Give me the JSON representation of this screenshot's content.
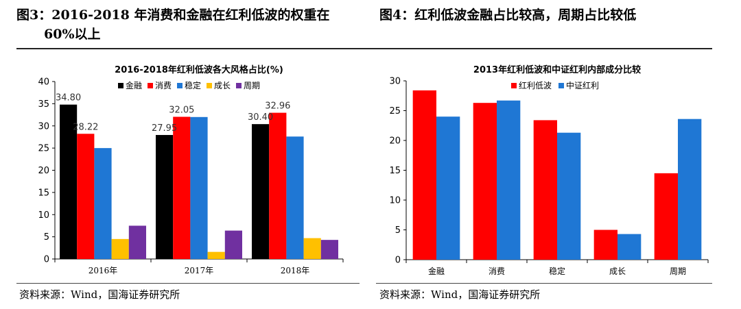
{
  "header": {
    "fig3_title_line1": "图3：2016-2018 年消费和金融在红利低波的权重在",
    "fig3_title_line2": "60%以上",
    "fig4_title": "图4：红利低波金融占比较高，周期占比较低"
  },
  "footer": {
    "source_left": "资料来源：Wind，国海证券研究所",
    "source_right": "资料来源：Wind，国海证券研究所"
  },
  "colors": {
    "black": "#000000",
    "red": "#ff0000",
    "blue": "#1f77d4",
    "yellow": "#ffc000",
    "purple": "#7030a0"
  },
  "chart_data": [
    {
      "type": "bar",
      "title": "2016-2018年红利低波各大风格占比(%)",
      "categories": [
        "2016年",
        "2017年",
        "2018年"
      ],
      "series": [
        {
          "name": "金融",
          "color": "#000000",
          "values": [
            34.8,
            27.95,
            30.4
          ]
        },
        {
          "name": "消费",
          "color": "#ff0000",
          "values": [
            28.22,
            32.05,
            32.96
          ]
        },
        {
          "name": "稳定",
          "color": "#1f77d4",
          "values": [
            25.0,
            32.0,
            27.6
          ]
        },
        {
          "name": "成长",
          "color": "#ffc000",
          "values": [
            4.5,
            1.6,
            4.7
          ]
        },
        {
          "name": "周期",
          "color": "#7030a0",
          "values": [
            7.5,
            6.4,
            4.3
          ]
        }
      ],
      "data_labels": [
        {
          "series": 0,
          "category": 0,
          "text": "34.80"
        },
        {
          "series": 1,
          "category": 0,
          "text": "28.22"
        },
        {
          "series": 0,
          "category": 1,
          "text": "27.95"
        },
        {
          "series": 1,
          "category": 1,
          "text": "32.05"
        },
        {
          "series": 0,
          "category": 2,
          "text": "30.40"
        },
        {
          "series": 1,
          "category": 2,
          "text": "32.96"
        }
      ],
      "yticks": [
        "0",
        "5",
        "10",
        "15",
        "20",
        "25",
        "30",
        "35",
        "40"
      ],
      "ylim": [
        0,
        40
      ],
      "xlabel": "",
      "ylabel": "",
      "legend": "top",
      "grid": false
    },
    {
      "type": "bar",
      "title": "2013年红利低波和中证红利内部成分比较",
      "categories": [
        "金融",
        "消费",
        "稳定",
        "成长",
        "周期"
      ],
      "series": [
        {
          "name": "红利低波",
          "color": "#ff0000",
          "values": [
            28.4,
            26.3,
            23.4,
            5.0,
            14.5
          ]
        },
        {
          "name": "中证红利",
          "color": "#1f77d4",
          "values": [
            24.0,
            26.7,
            21.3,
            4.3,
            23.6
          ]
        }
      ],
      "yticks": [
        "0",
        "5",
        "10",
        "15",
        "20",
        "25",
        "30"
      ],
      "ylim": [
        0,
        30
      ],
      "xlabel": "",
      "ylabel": "",
      "legend": "top",
      "grid": false
    }
  ]
}
